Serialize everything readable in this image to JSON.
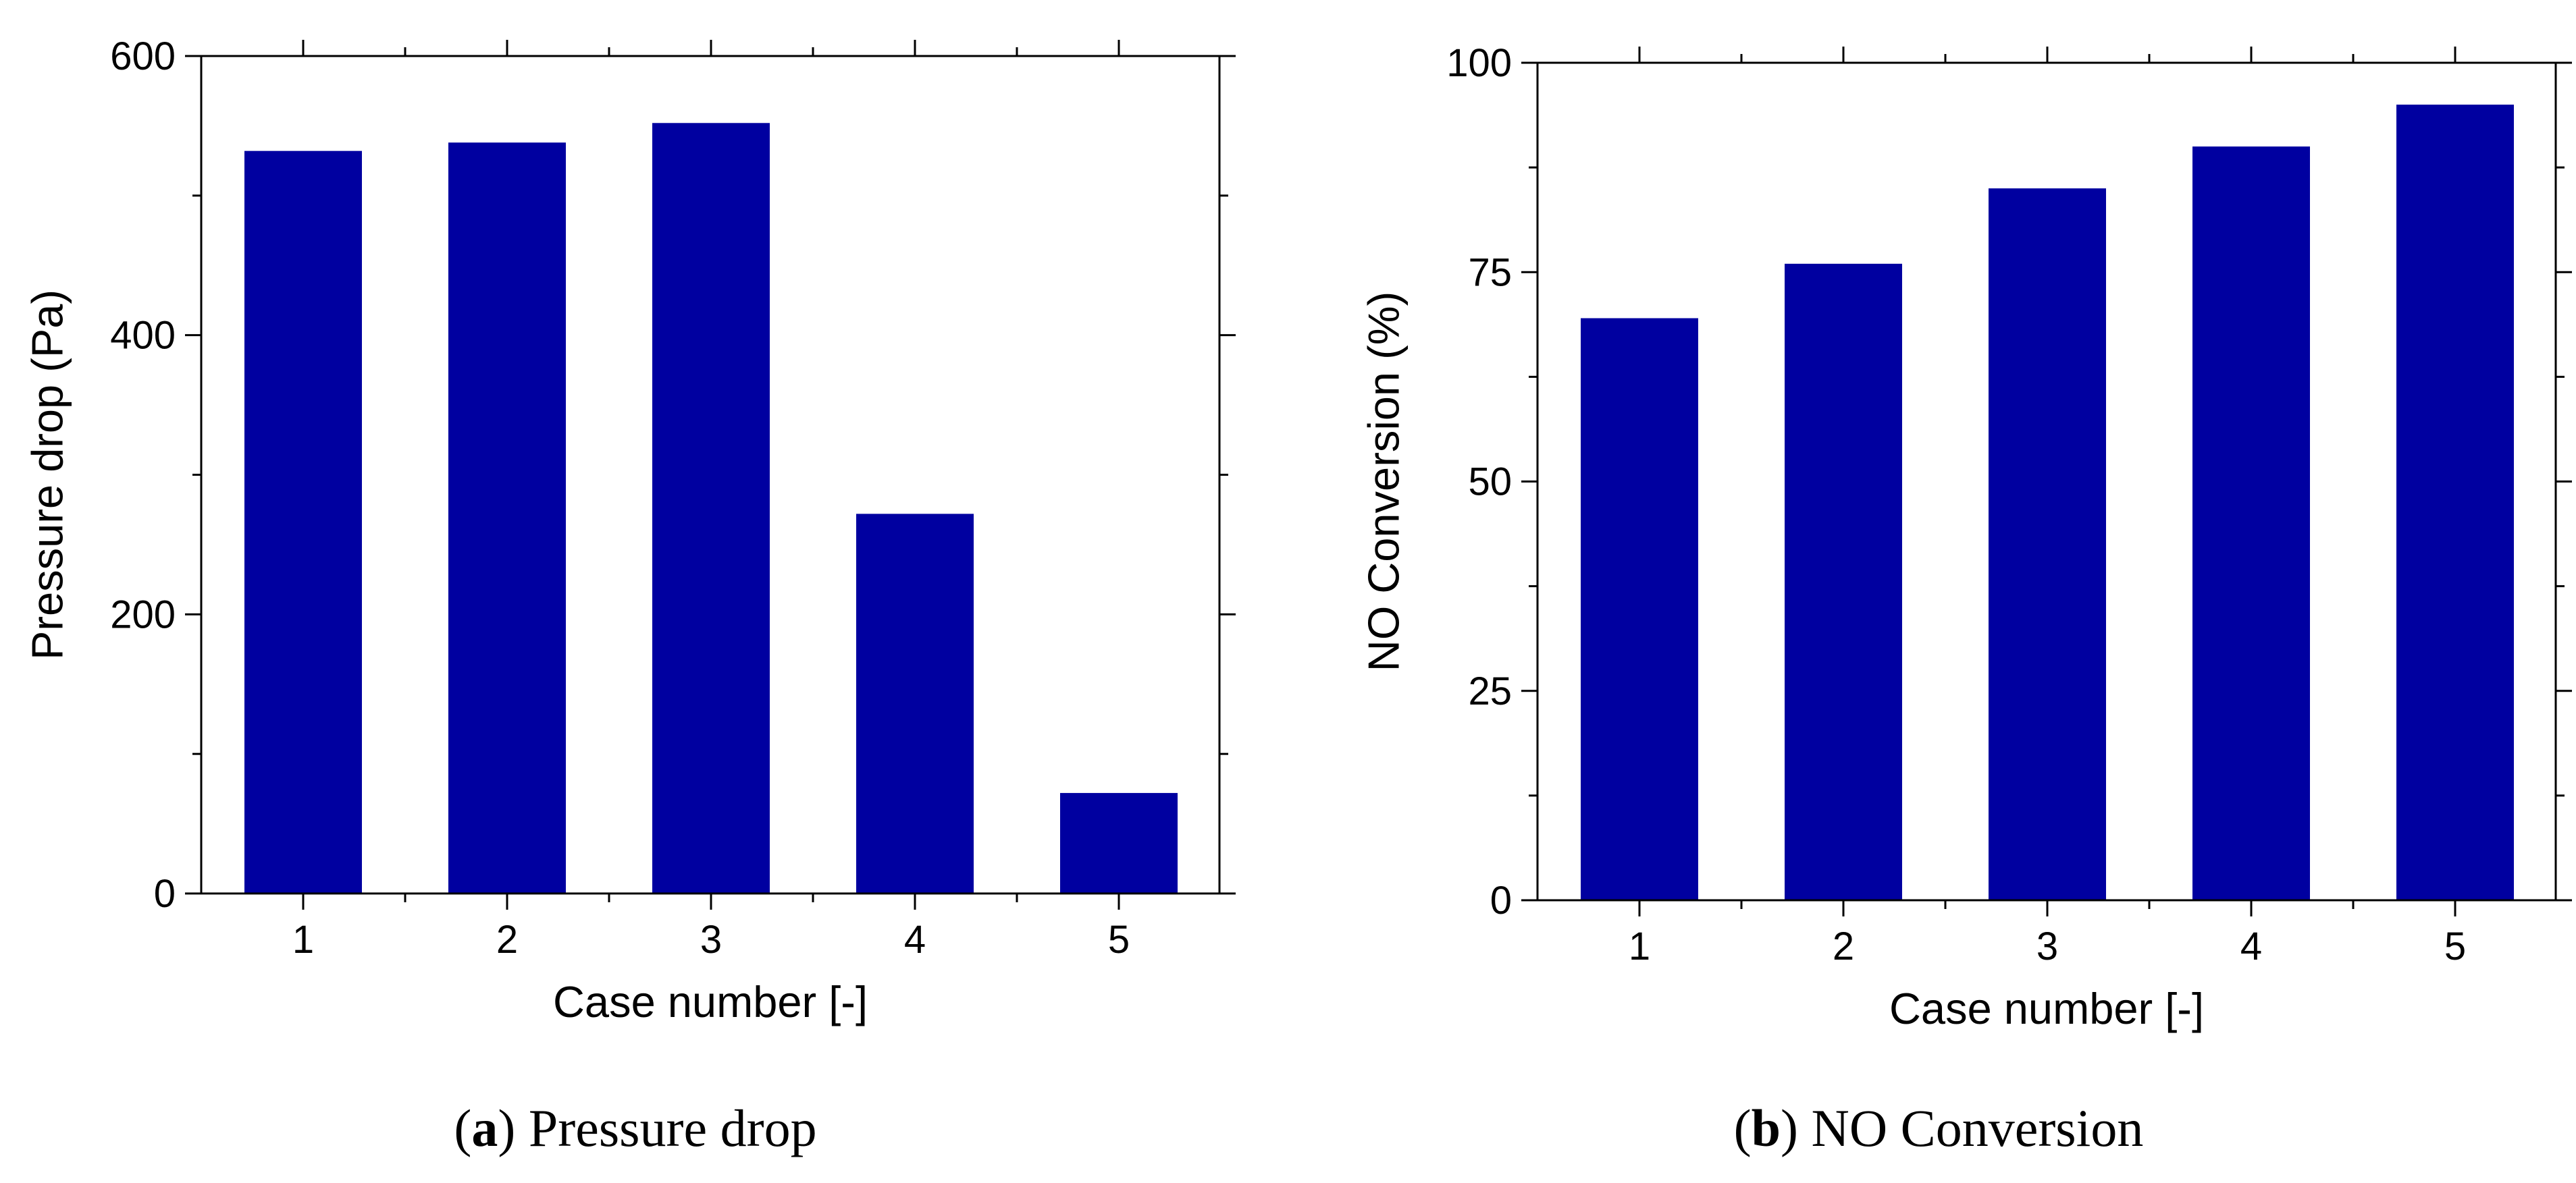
{
  "colors": {
    "bar": "#0000A0",
    "axis": "#000000",
    "background": "#ffffff"
  },
  "chart_data": [
    {
      "type": "bar",
      "title": "",
      "caption_letter": "a",
      "caption_text": "Pressure drop",
      "xlabel": "Case number [-]",
      "ylabel": "Pressure drop (Pa)",
      "categories": [
        "1",
        "2",
        "3",
        "4",
        "5"
      ],
      "values": [
        532,
        538,
        552,
        272,
        72
      ],
      "ylim": [
        0,
        600
      ],
      "yticks": [
        0,
        200,
        400,
        600
      ],
      "yminor": [
        100,
        300,
        500
      ],
      "grid": false
    },
    {
      "type": "bar",
      "title": "",
      "caption_letter": "b",
      "caption_text": "NO Conversion",
      "xlabel": "Case number [-]",
      "ylabel": "NO Conversion (%)",
      "categories": [
        "1",
        "2",
        "3",
        "4",
        "5"
      ],
      "values": [
        69.5,
        76,
        85,
        90,
        95
      ],
      "ylim": [
        0,
        100
      ],
      "yticks": [
        0,
        25,
        50,
        75,
        100
      ],
      "yminor": [
        12.5,
        37.5,
        62.5,
        87.5
      ],
      "grid": false
    }
  ]
}
